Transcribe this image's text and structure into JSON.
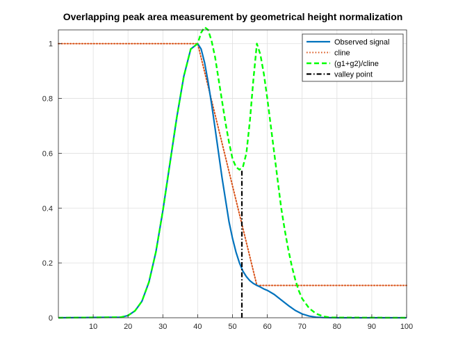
{
  "chart_data": {
    "type": "line",
    "title": "Overlapping peak area measurement by geometrical height normalization",
    "xlabel": "",
    "ylabel": "",
    "xlim": [
      0,
      100
    ],
    "ylim": [
      0,
      1.05
    ],
    "xticks": [
      10,
      20,
      30,
      40,
      50,
      60,
      70,
      80,
      90,
      100
    ],
    "yticks": [
      0,
      0.2,
      0.4,
      0.6,
      0.8,
      1
    ],
    "ytick_labels": [
      "0",
      "0.2",
      "0.4",
      "0.6",
      "0.8",
      "1"
    ],
    "grid": true,
    "legend_position": "top-right",
    "series": [
      {
        "name": "Observed signal",
        "color": "#0072BD",
        "style": "solid",
        "x": [
          0,
          18,
          20,
          22,
          24,
          26,
          28,
          30,
          32,
          34,
          36,
          38,
          40,
          41,
          42,
          43,
          44,
          45,
          46,
          47,
          48,
          49,
          50,
          51,
          52,
          53,
          54,
          55,
          56,
          57,
          58,
          59,
          60,
          62,
          64,
          66,
          68,
          70,
          72,
          74,
          76,
          80,
          100
        ],
        "y": [
          0,
          0.002,
          0.008,
          0.025,
          0.06,
          0.13,
          0.24,
          0.39,
          0.56,
          0.73,
          0.88,
          0.98,
          1.0,
          0.98,
          0.93,
          0.86,
          0.78,
          0.69,
          0.6,
          0.51,
          0.43,
          0.35,
          0.29,
          0.24,
          0.2,
          0.17,
          0.15,
          0.135,
          0.125,
          0.118,
          0.112,
          0.105,
          0.1,
          0.085,
          0.065,
          0.045,
          0.027,
          0.014,
          0.006,
          0.002,
          0.0008,
          0,
          0
        ]
      },
      {
        "name": "cline",
        "color": "#D95319",
        "style": "dotted",
        "x": [
          0,
          40,
          57,
          100
        ],
        "y": [
          1.0,
          1.0,
          0.118,
          0.118
        ]
      },
      {
        "name": "(g1+g2)/cline",
        "color": "#00FF00",
        "style": "dashed",
        "x": [
          0,
          18,
          20,
          22,
          24,
          26,
          28,
          30,
          32,
          34,
          36,
          38,
          40,
          41,
          42,
          43,
          44,
          45,
          46,
          47,
          48,
          49,
          50,
          51,
          52,
          53,
          54,
          55,
          56,
          57,
          58,
          59,
          60,
          61,
          62,
          63,
          64,
          65,
          66,
          67,
          68,
          69,
          70,
          72,
          74,
          76,
          78,
          100
        ],
        "y": [
          0,
          0.002,
          0.008,
          0.025,
          0.06,
          0.13,
          0.24,
          0.39,
          0.56,
          0.73,
          0.88,
          0.98,
          1.0,
          1.04,
          1.06,
          1.05,
          1.01,
          0.95,
          0.87,
          0.79,
          0.71,
          0.64,
          0.58,
          0.55,
          0.54,
          0.55,
          0.6,
          0.72,
          0.87,
          1.0,
          0.96,
          0.89,
          0.8,
          0.7,
          0.6,
          0.5,
          0.4,
          0.32,
          0.25,
          0.19,
          0.14,
          0.1,
          0.07,
          0.035,
          0.015,
          0.005,
          0.001,
          0
        ]
      },
      {
        "name": "valley point",
        "color": "#000000",
        "style": "dashdot",
        "x": [
          52.7,
          52.7
        ],
        "y": [
          0,
          0.54
        ]
      }
    ]
  }
}
